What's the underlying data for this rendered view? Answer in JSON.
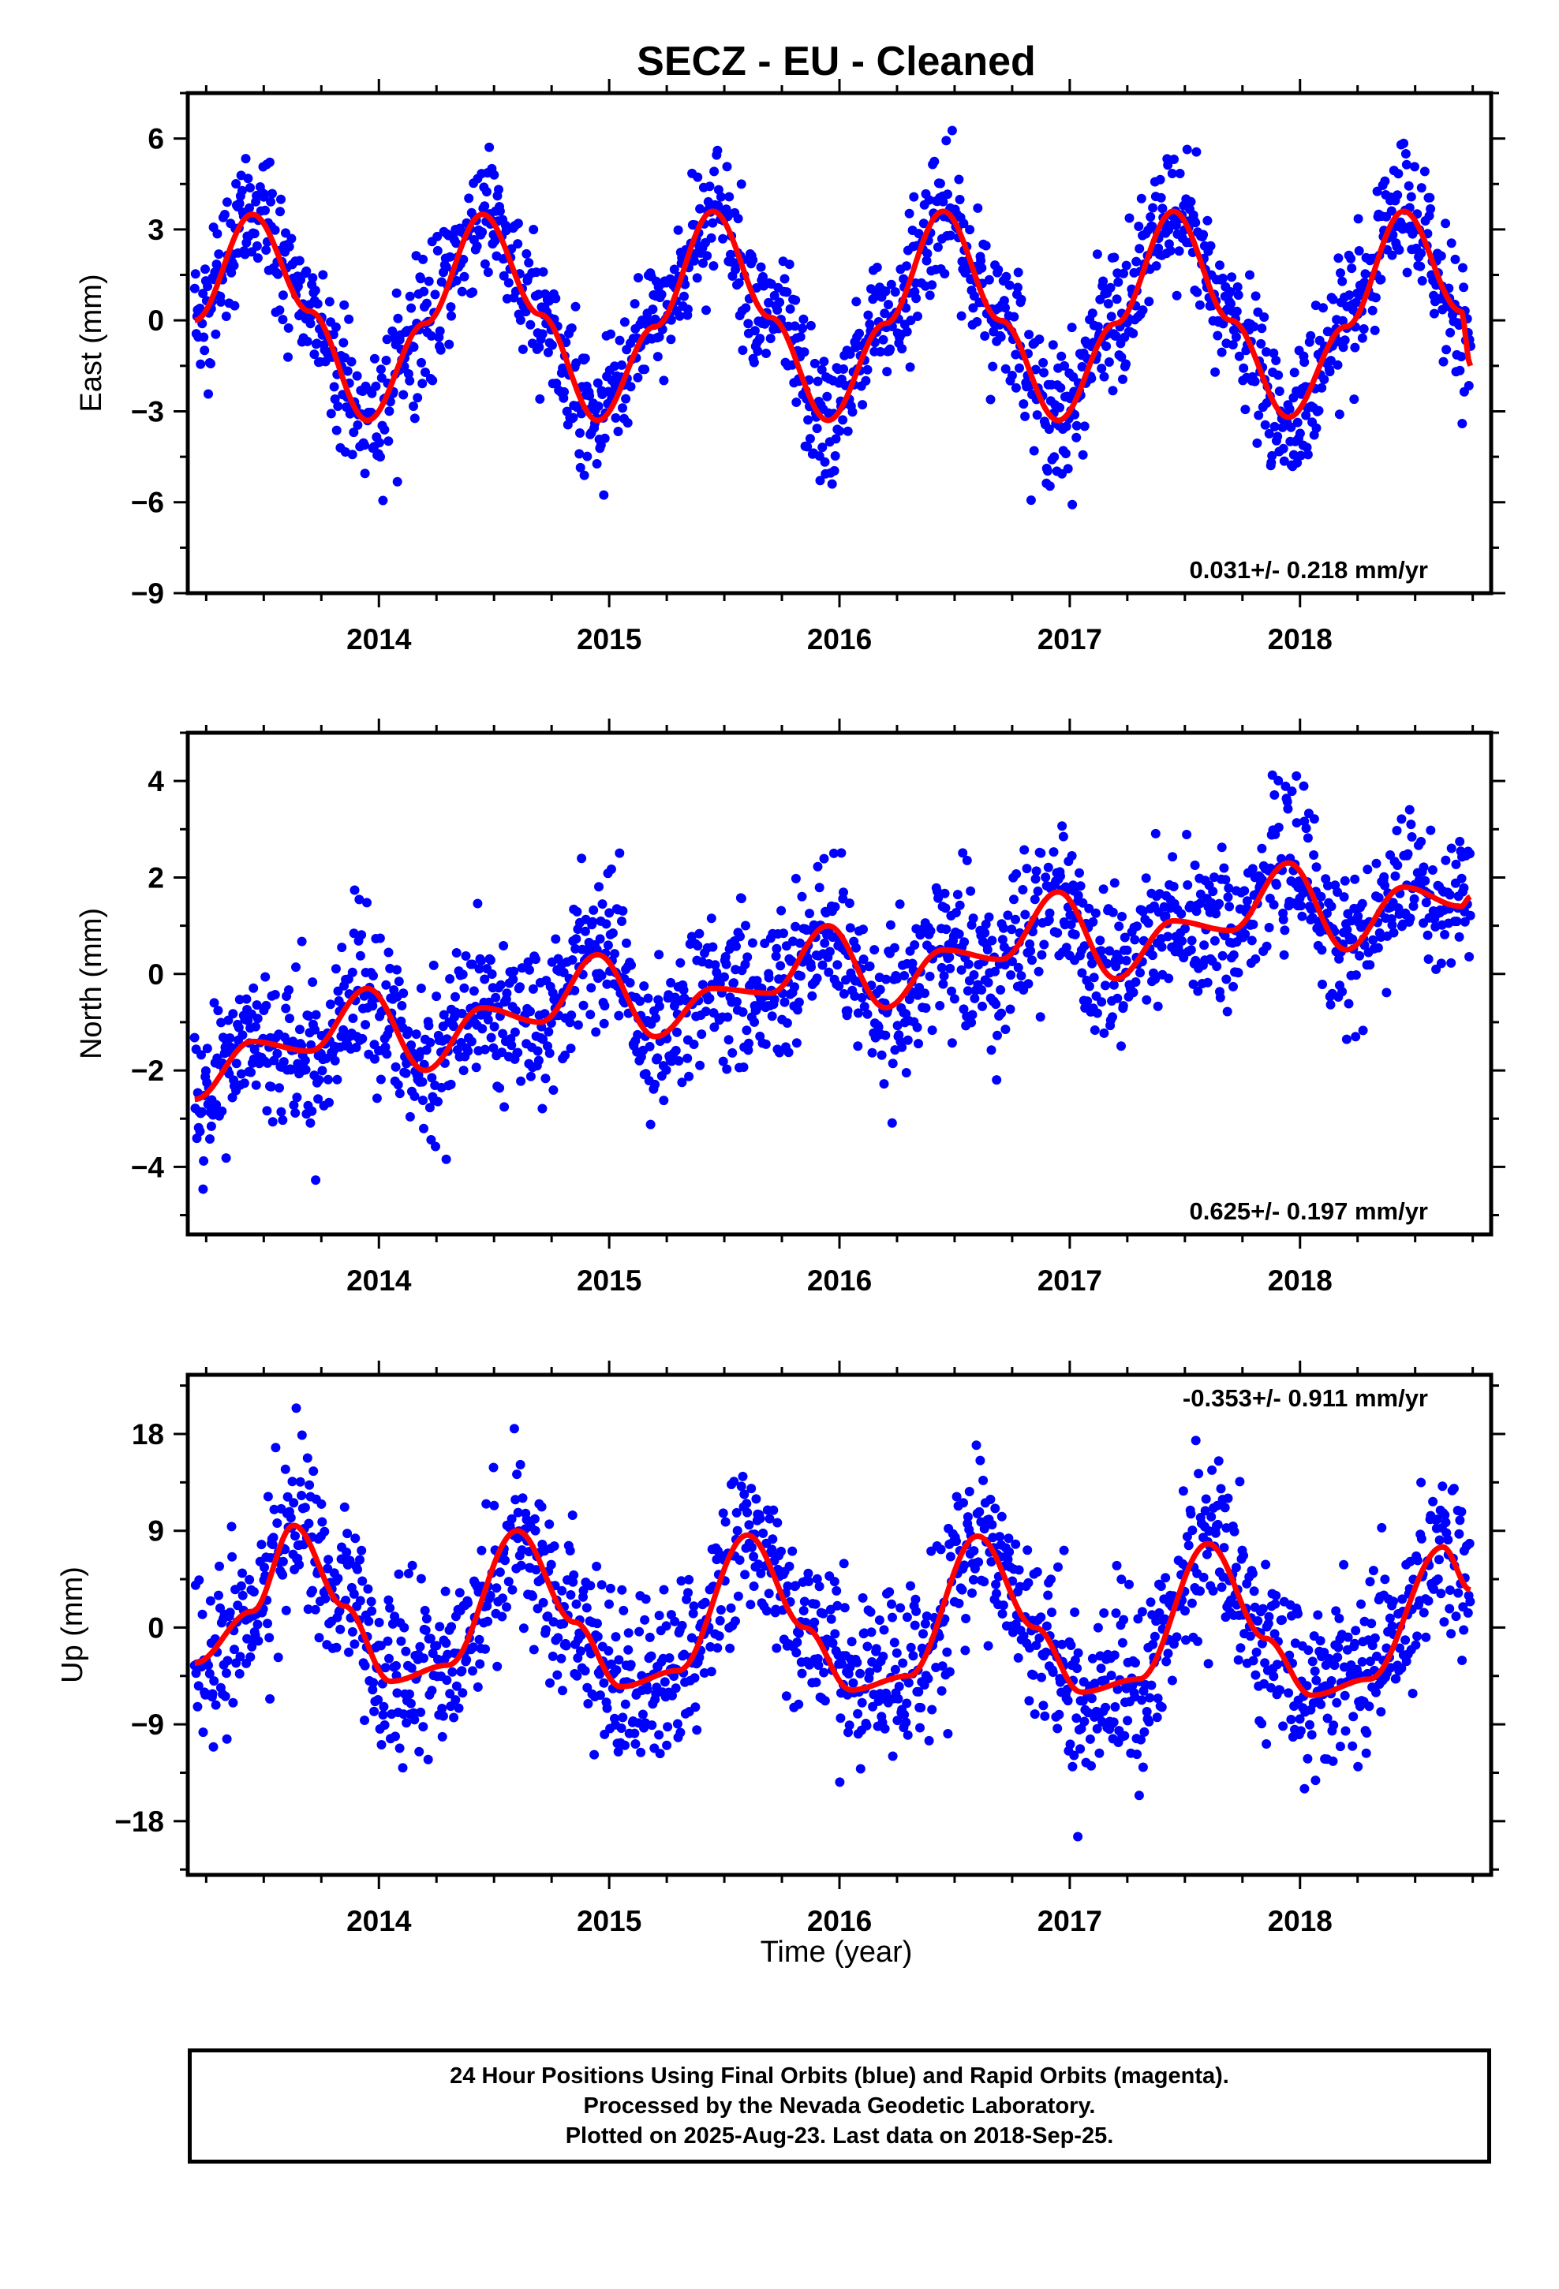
{
  "title": "SECZ  - EU - Cleaned",
  "xlabel": "Time (year)",
  "colors": {
    "points": "#0000ff",
    "fit": "#ff0000",
    "axes": "#000000"
  },
  "footer": {
    "line1": "24 Hour Positions Using Final Orbits (blue) and Rapid Orbits (magenta).",
    "line2": "Processed by the Nevada Geodetic Laboratory.",
    "line3": "Plotted on 2025-Aug-23. Last data on 2018-Sep-25."
  },
  "chart_data": [
    {
      "type": "scatter",
      "ylabel": "East (mm)",
      "rate_label": "0.031+/- 0.218 mm/yr",
      "xlim": [
        2013.17,
        2018.83
      ],
      "ylim": [
        -9,
        7.5
      ],
      "xticks": [
        "2014",
        "2015",
        "2016",
        "2017",
        "2018"
      ],
      "yticks": [
        "-9",
        "-6",
        "-3",
        "0",
        "3",
        "6"
      ],
      "ytick_values": [
        -9,
        -6,
        -3,
        0,
        3,
        6
      ],
      "points_scatter_mm": 1.1,
      "fit_curve": {
        "x": [
          2013.2,
          2013.45,
          2013.7,
          2013.95,
          2014.2,
          2014.45,
          2014.7,
          2014.95,
          2015.2,
          2015.45,
          2015.7,
          2015.95,
          2016.2,
          2016.45,
          2016.7,
          2016.95,
          2017.2,
          2017.45,
          2017.7,
          2017.95,
          2018.2,
          2018.45,
          2018.7,
          2018.74
        ],
        "y": [
          0.0,
          3.5,
          0.3,
          -3.3,
          -0.1,
          3.5,
          0.2,
          -3.3,
          -0.2,
          3.6,
          0.1,
          -3.3,
          -0.1,
          3.6,
          0.0,
          -3.3,
          -0.1,
          3.6,
          0.0,
          -3.2,
          -0.2,
          3.6,
          0.3,
          -1.5
        ]
      }
    },
    {
      "type": "scatter",
      "ylabel": "North (mm)",
      "rate_label": "0.625+/- 0.197 mm/yr",
      "xlim": [
        2013.17,
        2018.83
      ],
      "ylim": [
        -5.4,
        5.0
      ],
      "xticks": [
        "2014",
        "2015",
        "2016",
        "2017",
        "2018"
      ],
      "yticks": [
        "-4",
        "-2",
        "0",
        "2",
        "4"
      ],
      "ytick_values": [
        -4,
        -2,
        0,
        2,
        4
      ],
      "points_scatter_mm": 0.8,
      "fit_curve": {
        "x": [
          2013.2,
          2013.45,
          2013.7,
          2013.95,
          2014.2,
          2014.45,
          2014.7,
          2014.95,
          2015.2,
          2015.45,
          2015.7,
          2015.95,
          2016.2,
          2016.45,
          2016.7,
          2016.95,
          2017.2,
          2017.45,
          2017.7,
          2017.95,
          2018.2,
          2018.45,
          2018.7,
          2018.74
        ],
        "y": [
          -2.6,
          -1.4,
          -1.6,
          -0.3,
          -2.0,
          -0.7,
          -1.0,
          0.4,
          -1.3,
          -0.3,
          -0.4,
          1.0,
          -0.7,
          0.5,
          0.3,
          1.7,
          -0.1,
          1.1,
          0.9,
          2.3,
          0.5,
          1.8,
          1.4,
          1.6
        ]
      }
    },
    {
      "type": "scatter",
      "ylabel": "Up (mm)",
      "rate_label": "-0.353+/- 0.911 mm/yr",
      "xlim": [
        2013.17,
        2018.83
      ],
      "ylim": [
        -23,
        23.5
      ],
      "xticks": [
        "2014",
        "2015",
        "2016",
        "2017",
        "2018"
      ],
      "yticks": [
        "-18",
        "-9",
        "0",
        "9",
        "18"
      ],
      "ytick_values": [
        -18,
        -9,
        0,
        9,
        18
      ],
      "points_scatter_mm": 4.0,
      "fit_curve": {
        "x": [
          2013.2,
          2013.45,
          2013.63,
          2013.85,
          2014.05,
          2014.3,
          2014.6,
          2014.85,
          2015.05,
          2015.3,
          2015.6,
          2015.85,
          2016.05,
          2016.3,
          2016.6,
          2016.85,
          2017.05,
          2017.3,
          2017.6,
          2017.85,
          2018.05,
          2018.3,
          2018.62,
          2018.74
        ],
        "y": [
          -3.3,
          1.5,
          9.5,
          2.0,
          -5.0,
          -3.5,
          9.0,
          0.5,
          -5.5,
          -4.0,
          8.6,
          0.0,
          -5.8,
          -4.5,
          8.5,
          0.0,
          -6.0,
          -4.8,
          7.8,
          -1.0,
          -6.3,
          -4.8,
          7.5,
          3.5
        ]
      }
    }
  ]
}
